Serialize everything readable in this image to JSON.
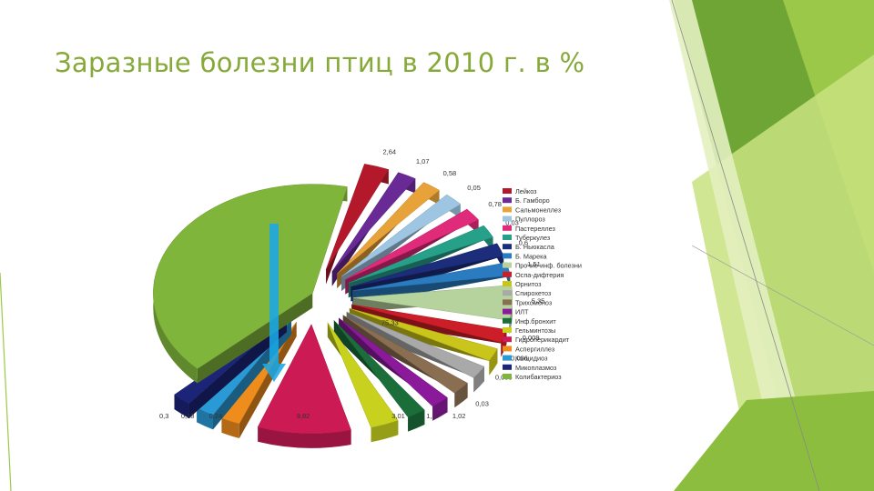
{
  "slide": {
    "title": "Заразные болезни птиц в 2010 г. в %"
  },
  "theme": {
    "accent": "#86a939",
    "deco_dark": "#5f9a2d",
    "deco_light": "#c9e27f"
  },
  "chart_data": {
    "type": "pie",
    "title": "",
    "exploded": true,
    "three_d": true,
    "legend_position": "right",
    "slices": [
      {
        "name": "Лейкоз",
        "value": 2.64,
        "label": "2,64",
        "color": "#b3192b"
      },
      {
        "name": "Б. Гамборо",
        "value": 1.07,
        "label": "1,07",
        "color": "#6a2a96"
      },
      {
        "name": "Сальмонеллез",
        "value": 0.58,
        "label": "0,58",
        "color": "#e8a23a"
      },
      {
        "name": "Пуллороз",
        "value": 0.05,
        "label": "0,05",
        "color": "#9ec6e2"
      },
      {
        "name": "Пастереллез",
        "value": 0.78,
        "label": "0,78",
        "color": "#e02a7a"
      },
      {
        "name": "Туберкулез",
        "value": 0.03,
        "label": "0,03",
        "color": "#27a08a"
      },
      {
        "name": "Б. Ньюкасла",
        "value": 0.6,
        "label": "0,6",
        "color": "#1c2d7c"
      },
      {
        "name": "Б. Марека",
        "value": 1.51,
        "label": "1,51",
        "color": "#2a7bc0"
      },
      {
        "name": "Прочие инф. болезни",
        "value": 5.35,
        "label": "5,35",
        "color": "#b6d39e"
      },
      {
        "name": "Оспа-дифтерия",
        "value": 0.009,
        "label": "0,009",
        "color": "#cc1e28"
      },
      {
        "name": "Орнитоз",
        "value": 0.006,
        "label": "0,006",
        "color": "#c9c51b"
      },
      {
        "name": "Спирохетоз",
        "value": 0.005,
        "label": "0,005",
        "color": "#a9a9a9"
      },
      {
        "name": "Трихомоноз",
        "value": 0.03,
        "label": "0,03",
        "color": "#8a6e52"
      },
      {
        "name": "ИЛТ",
        "value": 1.02,
        "label": "1,02",
        "color": "#8a1a9a"
      },
      {
        "name": "Инф.бронхит",
        "value": 1.17,
        "label": "1,17",
        "color": "#1b6e3a"
      },
      {
        "name": "Гельминтозы",
        "value": 3.01,
        "label": "3,01",
        "color": "#c8d21e"
      },
      {
        "name": "Гидроперикардит",
        "value": 9.82,
        "label": "9,82",
        "color": "#cc1a55"
      },
      {
        "name": "Аспергиллез",
        "value": 0.24,
        "label": "0,24",
        "color": "#ee8c1c"
      },
      {
        "name": "Кокцидиоз",
        "value": 0.18,
        "label": "0,18",
        "color": "#2a9ad6"
      },
      {
        "name": "Микоплазмоз",
        "value": 0.3,
        "label": "0,3",
        "color": "#1c2478"
      },
      {
        "name": "Колибактериоз",
        "value": 75.33,
        "label": "75,33",
        "color": "#80b53c"
      }
    ]
  }
}
